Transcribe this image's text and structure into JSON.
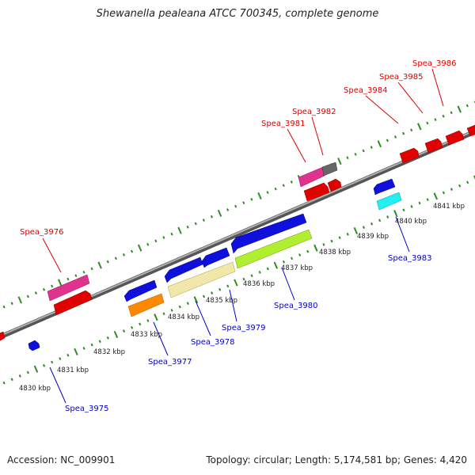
{
  "title": "Shewanella pealeana ATCC 700345, complete genome",
  "footer": {
    "accession": "Accession: NC_009901",
    "summary": "Topology: circular; Length: 5,174,581 bp; Genes: 4,420"
  },
  "colors": {
    "forward_label": "#dd0000",
    "reverse_label": "#0000cc",
    "backbone": "#888888",
    "tick": "#2e8b22"
  },
  "scale_labels": [
    "4830 kbp",
    "4831 kbp",
    "4832 kbp",
    "4833 kbp",
    "4834 kbp",
    "4835 kbp",
    "4836 kbp",
    "4837 kbp",
    "4838 kbp",
    "4839 kbp",
    "4840 kbp",
    "4841 kbp"
  ],
  "gene_labels": {
    "spea_3975": "Spea_3975",
    "spea_3976": "Spea_3976",
    "spea_3977": "Spea_3977",
    "spea_3978": "Spea_3978",
    "spea_3979": "Spea_3979",
    "spea_3980": "Spea_3980",
    "spea_3981": "Spea_3981",
    "spea_3982": "Spea_3982",
    "spea_3983": "Spea_3983",
    "spea_3984": "Spea_3984",
    "spea_3985": "Spea_3985",
    "spea_3986": "Spea_3986"
  }
}
